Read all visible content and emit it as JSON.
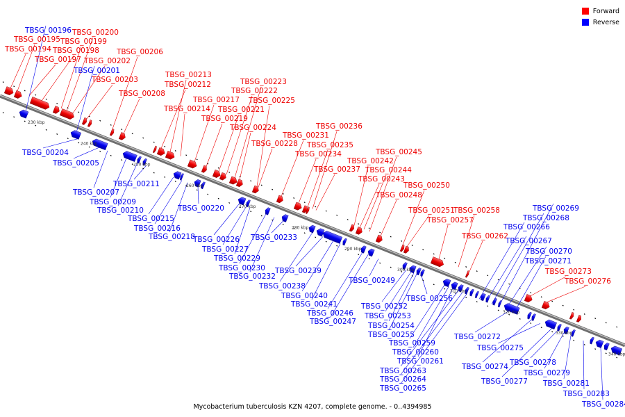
{
  "legend": {
    "forward_label": "Forward",
    "reverse_label": "Reverse",
    "forward_color": "#ff0000",
    "reverse_color": "#0000ff"
  },
  "caption": "Mycobacterium tuberculosis KZN 4207, complete genome. - 0..4394985",
  "axis": {
    "ticks": [
      "230 kbp",
      "240 kbp",
      "250 kbp",
      "260 kbp",
      "270 kbp",
      "280 kbp",
      "290 kbp",
      "300 kbp",
      "310 kbp",
      "320 kbp",
      "330 kbp",
      "340 kbp"
    ]
  },
  "forward_genes": [
    "TBSG_00194",
    "TBSG_00195",
    "TBSG_00197",
    "TBSG_00198",
    "TBSG_00199",
    "TBSG_00200",
    "TBSG_00202",
    "TBSG_00203",
    "TBSG_00206",
    "TBSG_00208",
    "TBSG_00212",
    "TBSG_00213",
    "TBSG_00214",
    "TBSG_00217",
    "TBSG_00219",
    "TBSG_00221",
    "TBSG_00222",
    "TBSG_00223",
    "TBSG_00224",
    "TBSG_00225",
    "TBSG_00228",
    "TBSG_00231",
    "TBSG_00234",
    "TBSG_00235",
    "TBSG_00236",
    "TBSG_00237",
    "TBSG_00242",
    "TBSG_00243",
    "TBSG_00244",
    "TBSG_00245",
    "TBSG_00248",
    "TBSG_00250",
    "TBSG_00251",
    "TBSG_00257",
    "TBSG_00258",
    "TBSG_00262",
    "TBSG_00273",
    "TBSG_00276"
  ],
  "reverse_genes": [
    "TBSG_00196",
    "TBSG_00201",
    "TBSG_00204",
    "TBSG_00205",
    "TBSG_00207",
    "TBSG_00209",
    "TBSG_00210",
    "TBSG_00211",
    "TBSG_00215",
    "TBSG_00216",
    "TBSG_00218",
    "TBSG_00220",
    "TBSG_00226",
    "TBSG_00227",
    "TBSG_00229",
    "TBSG_00230",
    "TBSG_00232",
    "TBSG_00233",
    "TBSG_00238",
    "TBSG_00239",
    "TBSG_00240",
    "TBSG_00241",
    "TBSG_00246",
    "TBSG_00247",
    "TBSG_00249",
    "TBSG_00252",
    "TBSG_00253",
    "TBSG_00254",
    "TBSG_00255",
    "TBSG_00256",
    "TBSG_00259",
    "TBSG_00260",
    "TBSG_00261",
    "TBSG_00263",
    "TBSG_00264",
    "TBSG_00265",
    "TBSG_00266",
    "TBSG_00267",
    "TBSG_00268",
    "TBSG_00269",
    "TBSG_00270",
    "TBSG_00271",
    "TBSG_00272",
    "TBSG_00274",
    "TBSG_00275",
    "TBSG_00277",
    "TBSG_00278",
    "TBSG_00279",
    "TBSG_00281",
    "TBSG_00283",
    "TBSG_00284"
  ]
}
